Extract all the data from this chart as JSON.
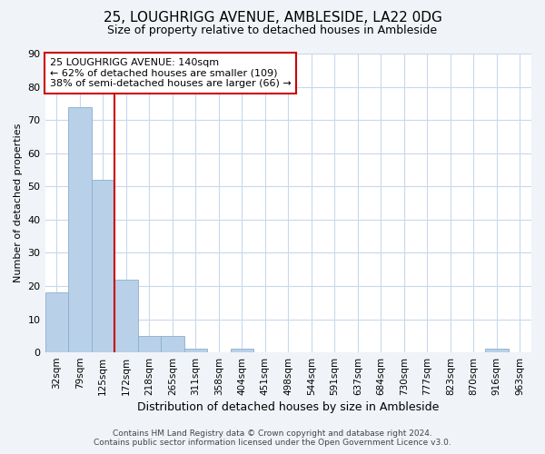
{
  "title": "25, LOUGHRIGG AVENUE, AMBLESIDE, LA22 0DG",
  "subtitle": "Size of property relative to detached houses in Ambleside",
  "xlabel": "Distribution of detached houses by size in Ambleside",
  "ylabel": "Number of detached properties",
  "categories": [
    "32sqm",
    "79sqm",
    "125sqm",
    "172sqm",
    "218sqm",
    "265sqm",
    "311sqm",
    "358sqm",
    "404sqm",
    "451sqm",
    "498sqm",
    "544sqm",
    "591sqm",
    "637sqm",
    "684sqm",
    "730sqm",
    "777sqm",
    "823sqm",
    "870sqm",
    "916sqm",
    "963sqm"
  ],
  "values": [
    18,
    74,
    52,
    22,
    5,
    5,
    1,
    0,
    1,
    0,
    0,
    0,
    0,
    0,
    0,
    0,
    0,
    0,
    0,
    1,
    0
  ],
  "bar_color": "#b8d0e8",
  "bar_edgecolor": "#8ab0cc",
  "vline_x_index": 2,
  "vline_color": "#cc0000",
  "ylim": [
    0,
    90
  ],
  "yticks": [
    0,
    10,
    20,
    30,
    40,
    50,
    60,
    70,
    80,
    90
  ],
  "annotation_text": "25 LOUGHRIGG AVENUE: 140sqm\n← 62% of detached houses are smaller (109)\n38% of semi-detached houses are larger (66) →",
  "annotation_box_color": "#cc0000",
  "footer_line1": "Contains HM Land Registry data © Crown copyright and database right 2024.",
  "footer_line2": "Contains public sector information licensed under the Open Government Licence v3.0.",
  "bg_color": "#f0f4f8",
  "plot_bg_color": "#ffffff",
  "grid_color": "#c8d8ec",
  "title_fontsize": 11,
  "subtitle_fontsize": 9,
  "ylabel_fontsize": 8,
  "xlabel_fontsize": 9
}
